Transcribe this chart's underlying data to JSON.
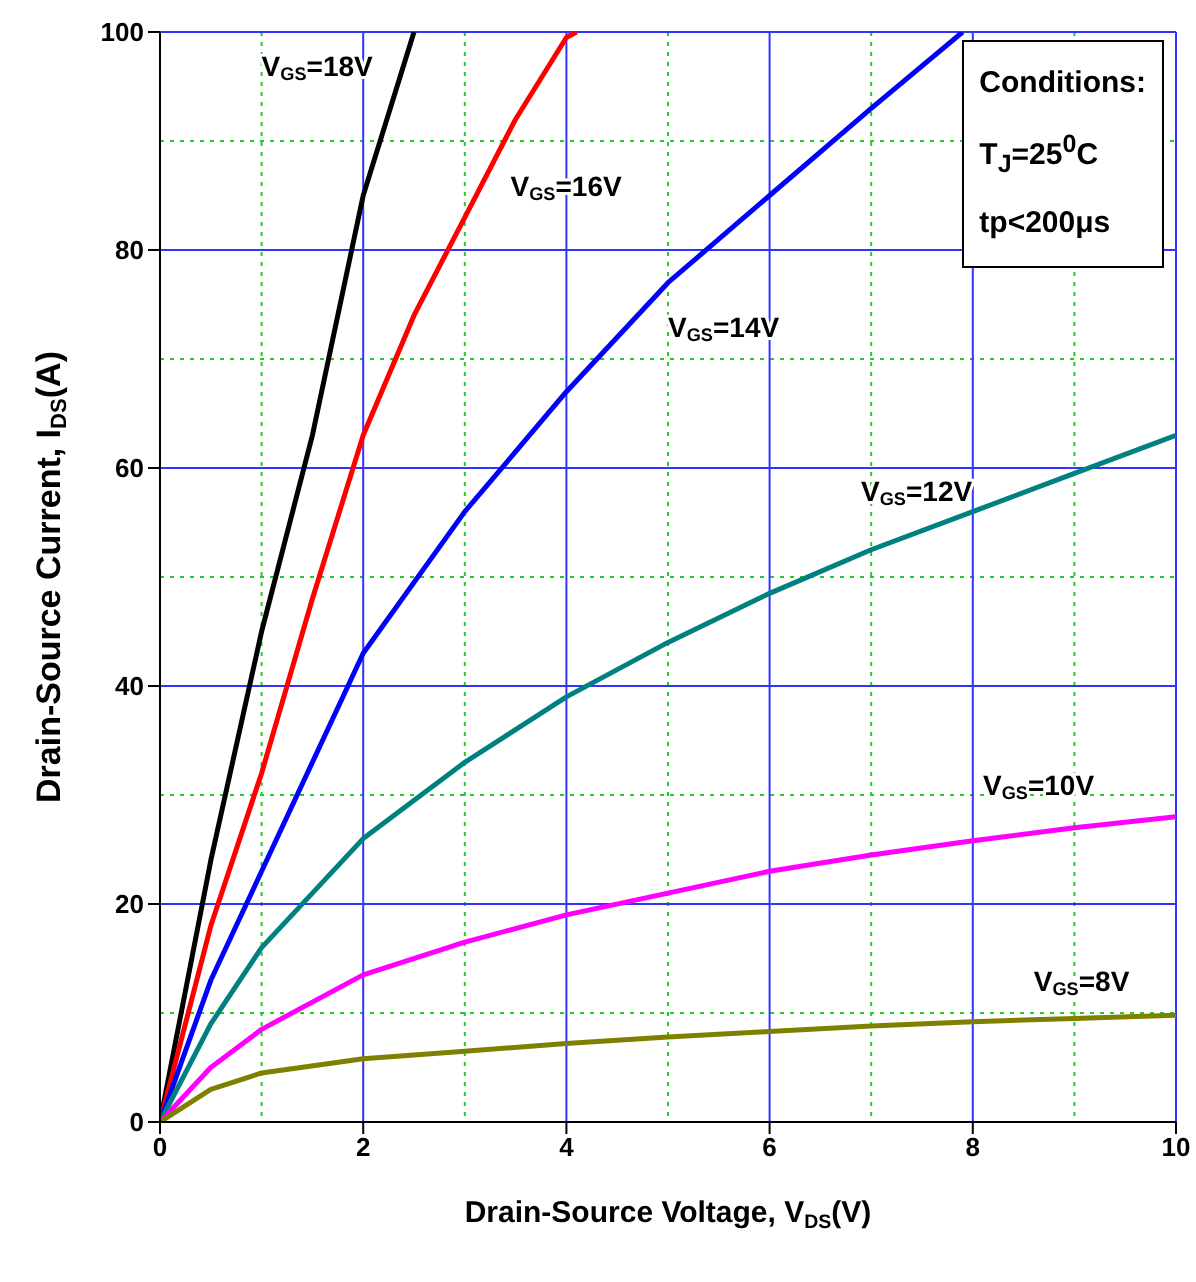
{
  "chart_data": {
    "type": "line",
    "xlabel": "Drain-Source Voltage, V$_{DS}$(V)",
    "ylabel": "Drain-Source Current, I$_{DS}$(A)",
    "annotations": [
      "Conditions:",
      "T$_{J}$=25$^{0}$C",
      "tp<200μs"
    ],
    "xlim": [
      0,
      10
    ],
    "xticks": [
      0,
      {
        "value": 1,
        "label": null
      },
      2,
      {
        "value": 3,
        "label": null
      },
      4,
      {
        "value": 5,
        "label": null
      },
      6,
      {
        "value": 7,
        "label": null
      },
      8,
      {
        "value": 9,
        "label": null
      },
      10
    ],
    "ylim": [
      0,
      100
    ],
    "yticks": [
      0,
      {
        "value": 10,
        "label": null
      },
      20,
      {
        "value": 30,
        "label": null
      },
      40,
      {
        "value": 50,
        "label": null
      },
      60,
      {
        "value": 70,
        "label": null
      },
      80,
      {
        "value": 90,
        "label": null
      },
      100
    ],
    "grid": true,
    "legend": false,
    "marker": "none",
    "line_style": "solid",
    "series": [
      {
        "name": "V$_{GS}$=18V",
        "color": "#000000",
        "x": [
          0,
          0.5,
          1,
          1.5,
          2,
          2.5
        ],
        "values": [
          0,
          24,
          45,
          63,
          85,
          100
        ]
      },
      {
        "name": "V$_{GS}$=16V",
        "color": "#ff0000",
        "x": [
          0,
          0.5,
          1,
          1.5,
          2,
          2.5,
          3,
          3.5,
          4,
          4.1
        ],
        "values": [
          0,
          18,
          32,
          48,
          63,
          74,
          83,
          92,
          99.5,
          100
        ]
      },
      {
        "name": "V$_{GS}$=14V",
        "color": "#0000ff",
        "x": [
          0,
          0.5,
          1,
          2,
          3,
          4,
          5,
          6,
          7,
          7.9
        ],
        "values": [
          0,
          13,
          23,
          43,
          56,
          67,
          77,
          85,
          93,
          100
        ]
      },
      {
        "name": "V$_{GS}$=12V",
        "color": "#008080",
        "x": [
          0,
          0.5,
          1,
          2,
          3,
          4,
          5,
          6,
          7,
          8,
          9,
          10
        ],
        "values": [
          0,
          9,
          16,
          26,
          33,
          39,
          44,
          48.5,
          52.5,
          56,
          59.5,
          63
        ]
      },
      {
        "name": "V$_{GS}$=10V",
        "color": "#ff00ff",
        "x": [
          0,
          0.5,
          1,
          2,
          3,
          4,
          5,
          6,
          7,
          8,
          9,
          10
        ],
        "values": [
          0,
          5,
          8.5,
          13.5,
          16.5,
          19,
          21,
          23,
          24.5,
          25.8,
          27,
          28
        ]
      },
      {
        "name": "V$_{GS}$=8V",
        "color": "#808000",
        "x": [
          0,
          0.5,
          1,
          2,
          3,
          4,
          5,
          6,
          7,
          8,
          9,
          10
        ],
        "values": [
          0,
          3,
          4.5,
          5.8,
          6.5,
          7.2,
          7.8,
          8.3,
          8.8,
          9.2,
          9.5,
          9.8
        ]
      }
    ]
  }
}
